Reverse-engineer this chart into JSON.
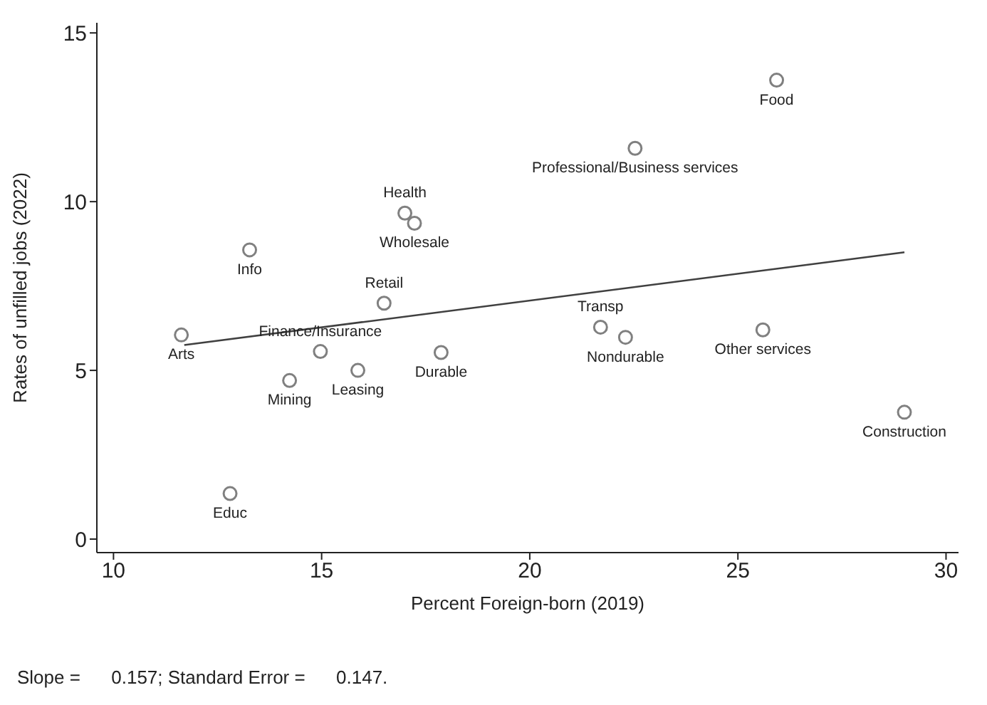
{
  "chart_data": {
    "type": "scatter",
    "xlabel": "Percent Foreign-born (2019)",
    "ylabel": "Rates of unfilled jobs (2022)",
    "xlim": [
      9.6,
      30.3
    ],
    "ylim": [
      -0.4,
      15.3
    ],
    "xticks": [
      10,
      15,
      20,
      25,
      30
    ],
    "yticks": [
      0,
      5,
      10,
      15
    ],
    "series": [
      {
        "color": "#808080",
        "marker": "circle",
        "x": [
          25.93,
          22.53,
          17.23,
          17.0,
          13.27,
          14.97,
          16.5,
          11.63,
          22.3,
          21.7,
          25.6,
          17.87,
          15.87,
          14.23,
          29.0,
          12.8
        ],
        "values": [
          13.6,
          11.58,
          9.36,
          9.66,
          8.57,
          5.56,
          6.99,
          6.05,
          5.98,
          6.28,
          6.2,
          5.53,
          5.0,
          4.7,
          3.76,
          1.35
        ],
        "value_labels": [
          "Food",
          "Professional/Business services",
          "Wholesale",
          "Health",
          "Info",
          "Finance/Insurance",
          "Retail",
          "Arts",
          "Nondurable",
          "Transp",
          "Other services",
          "Durable",
          "Leasing",
          "Mining",
          "Construction",
          "Educ"
        ]
      },
      {
        "type": "line",
        "color": "#404040",
        "x": [
          11.7,
          29.0
        ],
        "values": [
          5.75,
          8.5
        ]
      }
    ],
    "annotations": [
      "Slope =      0.157; Standard Error =      0.147."
    ]
  }
}
